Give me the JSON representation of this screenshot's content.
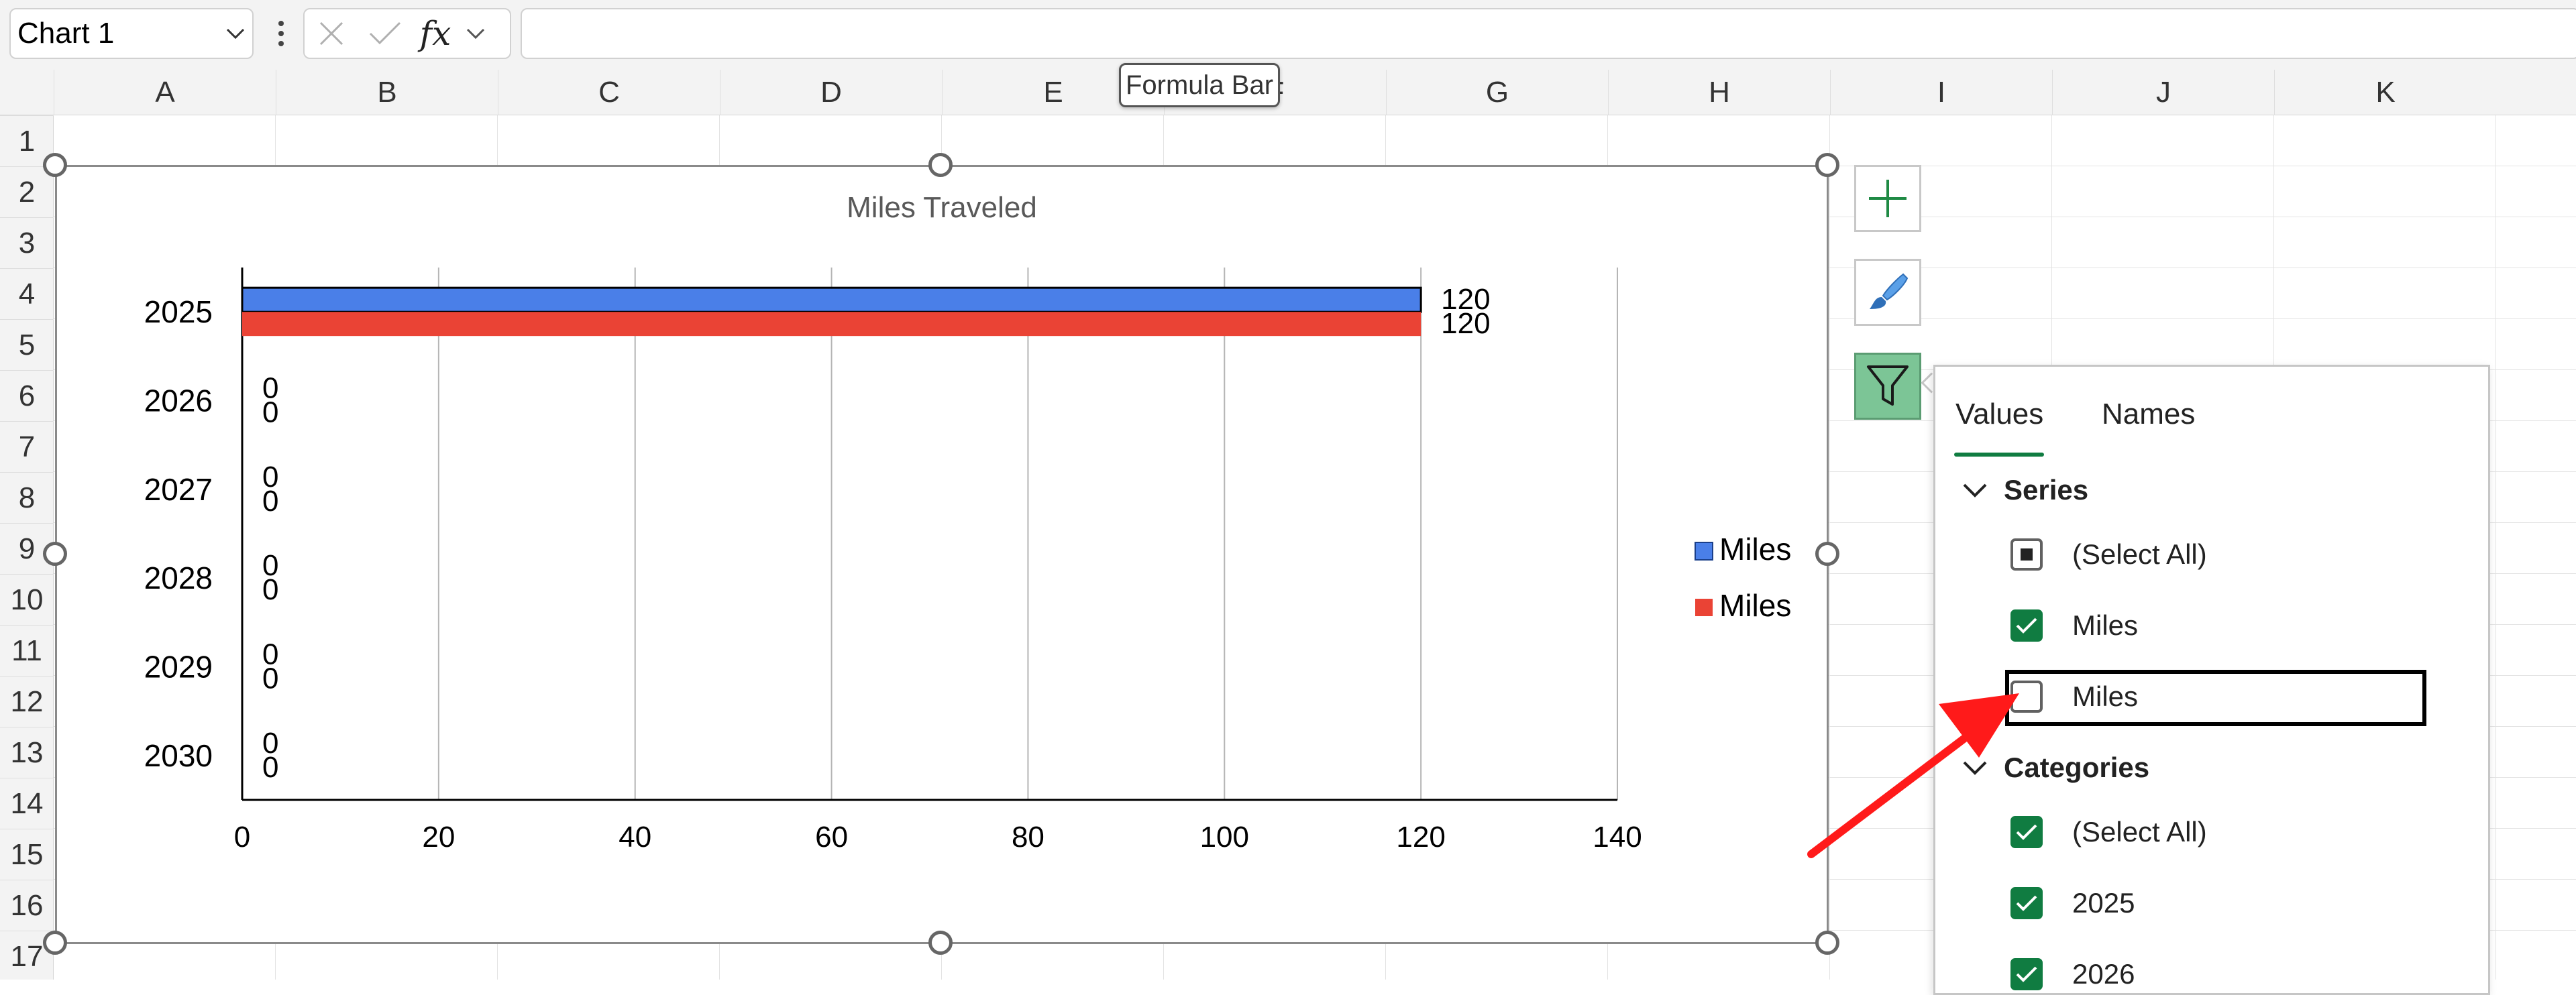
{
  "formula_bar": {
    "name_box": "Chart 1",
    "tooltip": "Formula Bar",
    "fx_label": "fx"
  },
  "columns": [
    "A",
    "B",
    "C",
    "D",
    "E",
    "F",
    "G",
    "H",
    "I",
    "J",
    "K"
  ],
  "rows": [
    "1",
    "2",
    "3",
    "4",
    "5",
    "6",
    "7",
    "8",
    "9",
    "10",
    "11",
    "12",
    "13",
    "14",
    "15",
    "16",
    "17"
  ],
  "chart": {
    "title": "Miles Traveled"
  },
  "chart_data": {
    "type": "bar",
    "orientation": "horizontal",
    "title": "Miles Traveled",
    "categories": [
      "2025",
      "2026",
      "2027",
      "2028",
      "2029",
      "2030"
    ],
    "series": [
      {
        "name": "Miles",
        "values": [
          120,
          0,
          0,
          0,
          0,
          0
        ],
        "color": "#4a7fe8"
      },
      {
        "name": "Miles",
        "values": [
          120,
          0,
          0,
          0,
          0,
          0
        ],
        "color": "#ea4335"
      }
    ],
    "xlim": [
      0,
      140
    ],
    "x_ticks": [
      "0",
      "20",
      "40",
      "60",
      "80",
      "100",
      "120",
      "140"
    ],
    "data_labels": true,
    "grid": "vertical",
    "legend": "right",
    "legend_entries": [
      "Miles",
      "Miles"
    ]
  },
  "side_buttons": {
    "elements": "chart-elements",
    "styles": "chart-styles",
    "filters": "chart-filters"
  },
  "filter_pane": {
    "tabs": [
      "Values",
      "Names"
    ],
    "series_header": "Series",
    "series_items": [
      {
        "label": "(Select All)",
        "state": "mixed"
      },
      {
        "label": "Miles",
        "state": "checked"
      },
      {
        "label": "Miles",
        "state": "unchecked"
      }
    ],
    "categories_header": "Categories",
    "category_items": [
      {
        "label": "(Select All)",
        "state": "checked"
      },
      {
        "label": "2025",
        "state": "checked"
      },
      {
        "label": "2026",
        "state": "checked"
      }
    ]
  },
  "colors": {
    "accent": "#107c41",
    "annotation_arrow": "#ff0000"
  }
}
